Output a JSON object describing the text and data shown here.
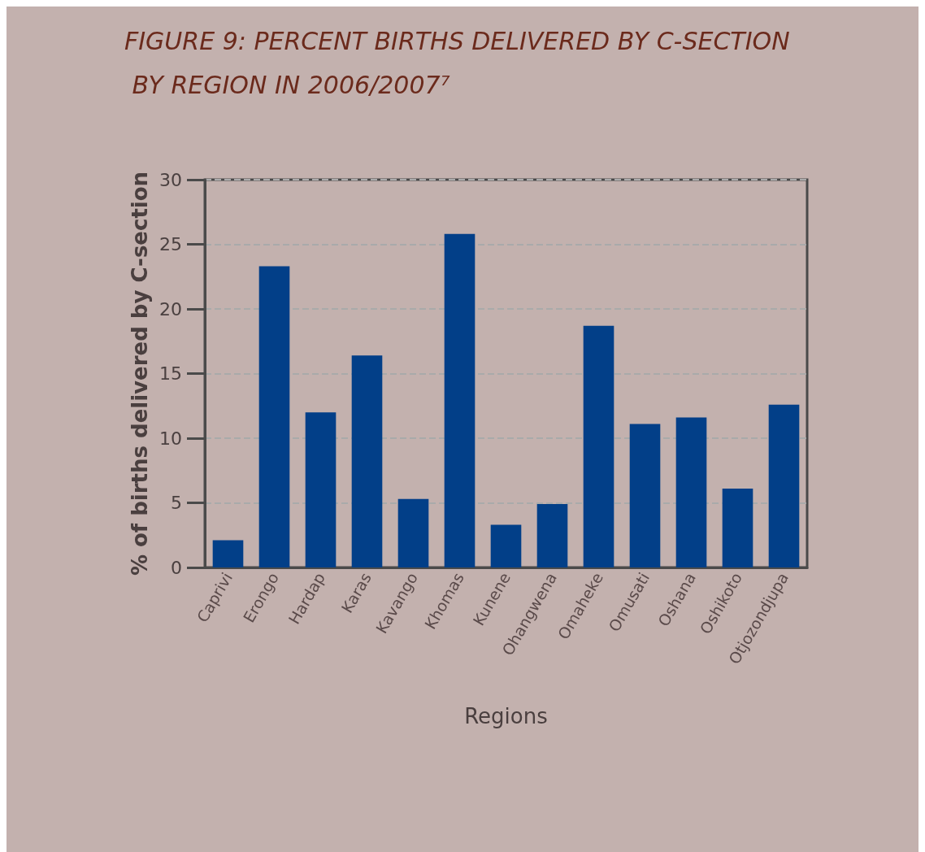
{
  "chart_data": {
    "type": "bar",
    "title": "FIGURE 9: PERCENT BIRTHS DELIVERED BY C-SECTION BY REGION IN 2006/2007⁷",
    "xlabel": "Regions",
    "ylabel": "% of births delivered by C-section",
    "categories": [
      "Caprivi",
      "Erongo",
      "Hardap",
      "Karas",
      "Kavango",
      "Khomas",
      "Kunene",
      "Ohangwena",
      "Omaheke",
      "Omusati",
      "Oshana",
      "Oshikoto",
      "Otjozondjupa"
    ],
    "values": [
      2.1,
      23.3,
      12.0,
      16.4,
      5.3,
      25.8,
      3.3,
      4.9,
      18.7,
      11.1,
      11.6,
      6.1,
      12.6
    ],
    "color": "#023f88",
    "ylim": [
      0,
      30
    ],
    "yticks": [
      0,
      5,
      10,
      15,
      20,
      25,
      30
    ],
    "grid": "y"
  }
}
